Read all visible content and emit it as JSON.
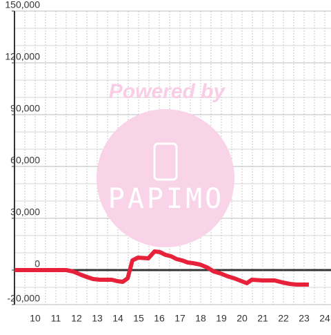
{
  "chart_data": {
    "type": "line",
    "x": [
      9,
      11.5,
      11.83,
      12.23,
      12.5,
      12.8,
      13.13,
      13.7,
      13.97,
      14.23,
      14.47,
      14.7,
      14.97,
      15.47,
      15.77,
      16.03,
      16.3,
      16.57,
      16.83,
      17.1,
      17.37,
      17.63,
      17.97,
      18.3,
      18.63,
      18.97,
      19.3,
      19.63,
      19.97,
      20.23,
      20.47,
      20.97,
      21.57,
      21.97,
      22.3,
      22.63,
      23.23
    ],
    "series": [
      {
        "color": "#e8213a",
        "values": [
          0,
          0,
          -800,
          -2800,
          -4000,
          -5200,
          -5600,
          -5600,
          -6400,
          -6800,
          -4800,
          5600,
          7200,
          6800,
          10800,
          10400,
          8800,
          8000,
          6400,
          5600,
          4400,
          4000,
          3200,
          1600,
          -800,
          -2000,
          -3600,
          -4800,
          -6400,
          -7600,
          -5600,
          -6000,
          -6000,
          -7200,
          -8000,
          -8400,
          -8400
        ]
      }
    ],
    "xlim": [
      9,
      24.3
    ],
    "ylim": [
      -20000,
      150000
    ],
    "xticks": [
      10,
      11,
      12,
      13,
      14,
      15,
      16,
      17,
      18,
      19,
      20,
      21,
      22,
      23,
      24
    ],
    "xminorticks": [
      9.5,
      10.5,
      11.5,
      12.5,
      13.5,
      14.5,
      15.5,
      16.5,
      17.5,
      18.5,
      19.5,
      20.5,
      21.5,
      22.5,
      23.5
    ],
    "yticks": [
      {
        "value": -20000,
        "label": "-20,000"
      },
      0,
      {
        "value": 30000,
        "label": "30,000"
      },
      {
        "value": 60000,
        "label": "60,000"
      },
      {
        "value": 90000,
        "label": "90,000"
      },
      {
        "value": 120000,
        "label": "120,000"
      },
      {
        "value": 150000,
        "label": "150,000"
      }
    ],
    "yminorticks": [
      -10000,
      10000,
      20000,
      40000,
      50000,
      70000,
      80000,
      100000,
      110000,
      130000,
      140000
    ],
    "grid": true
  },
  "watermark": {
    "text": "Powered by",
    "brand": "PAPIMO"
  }
}
